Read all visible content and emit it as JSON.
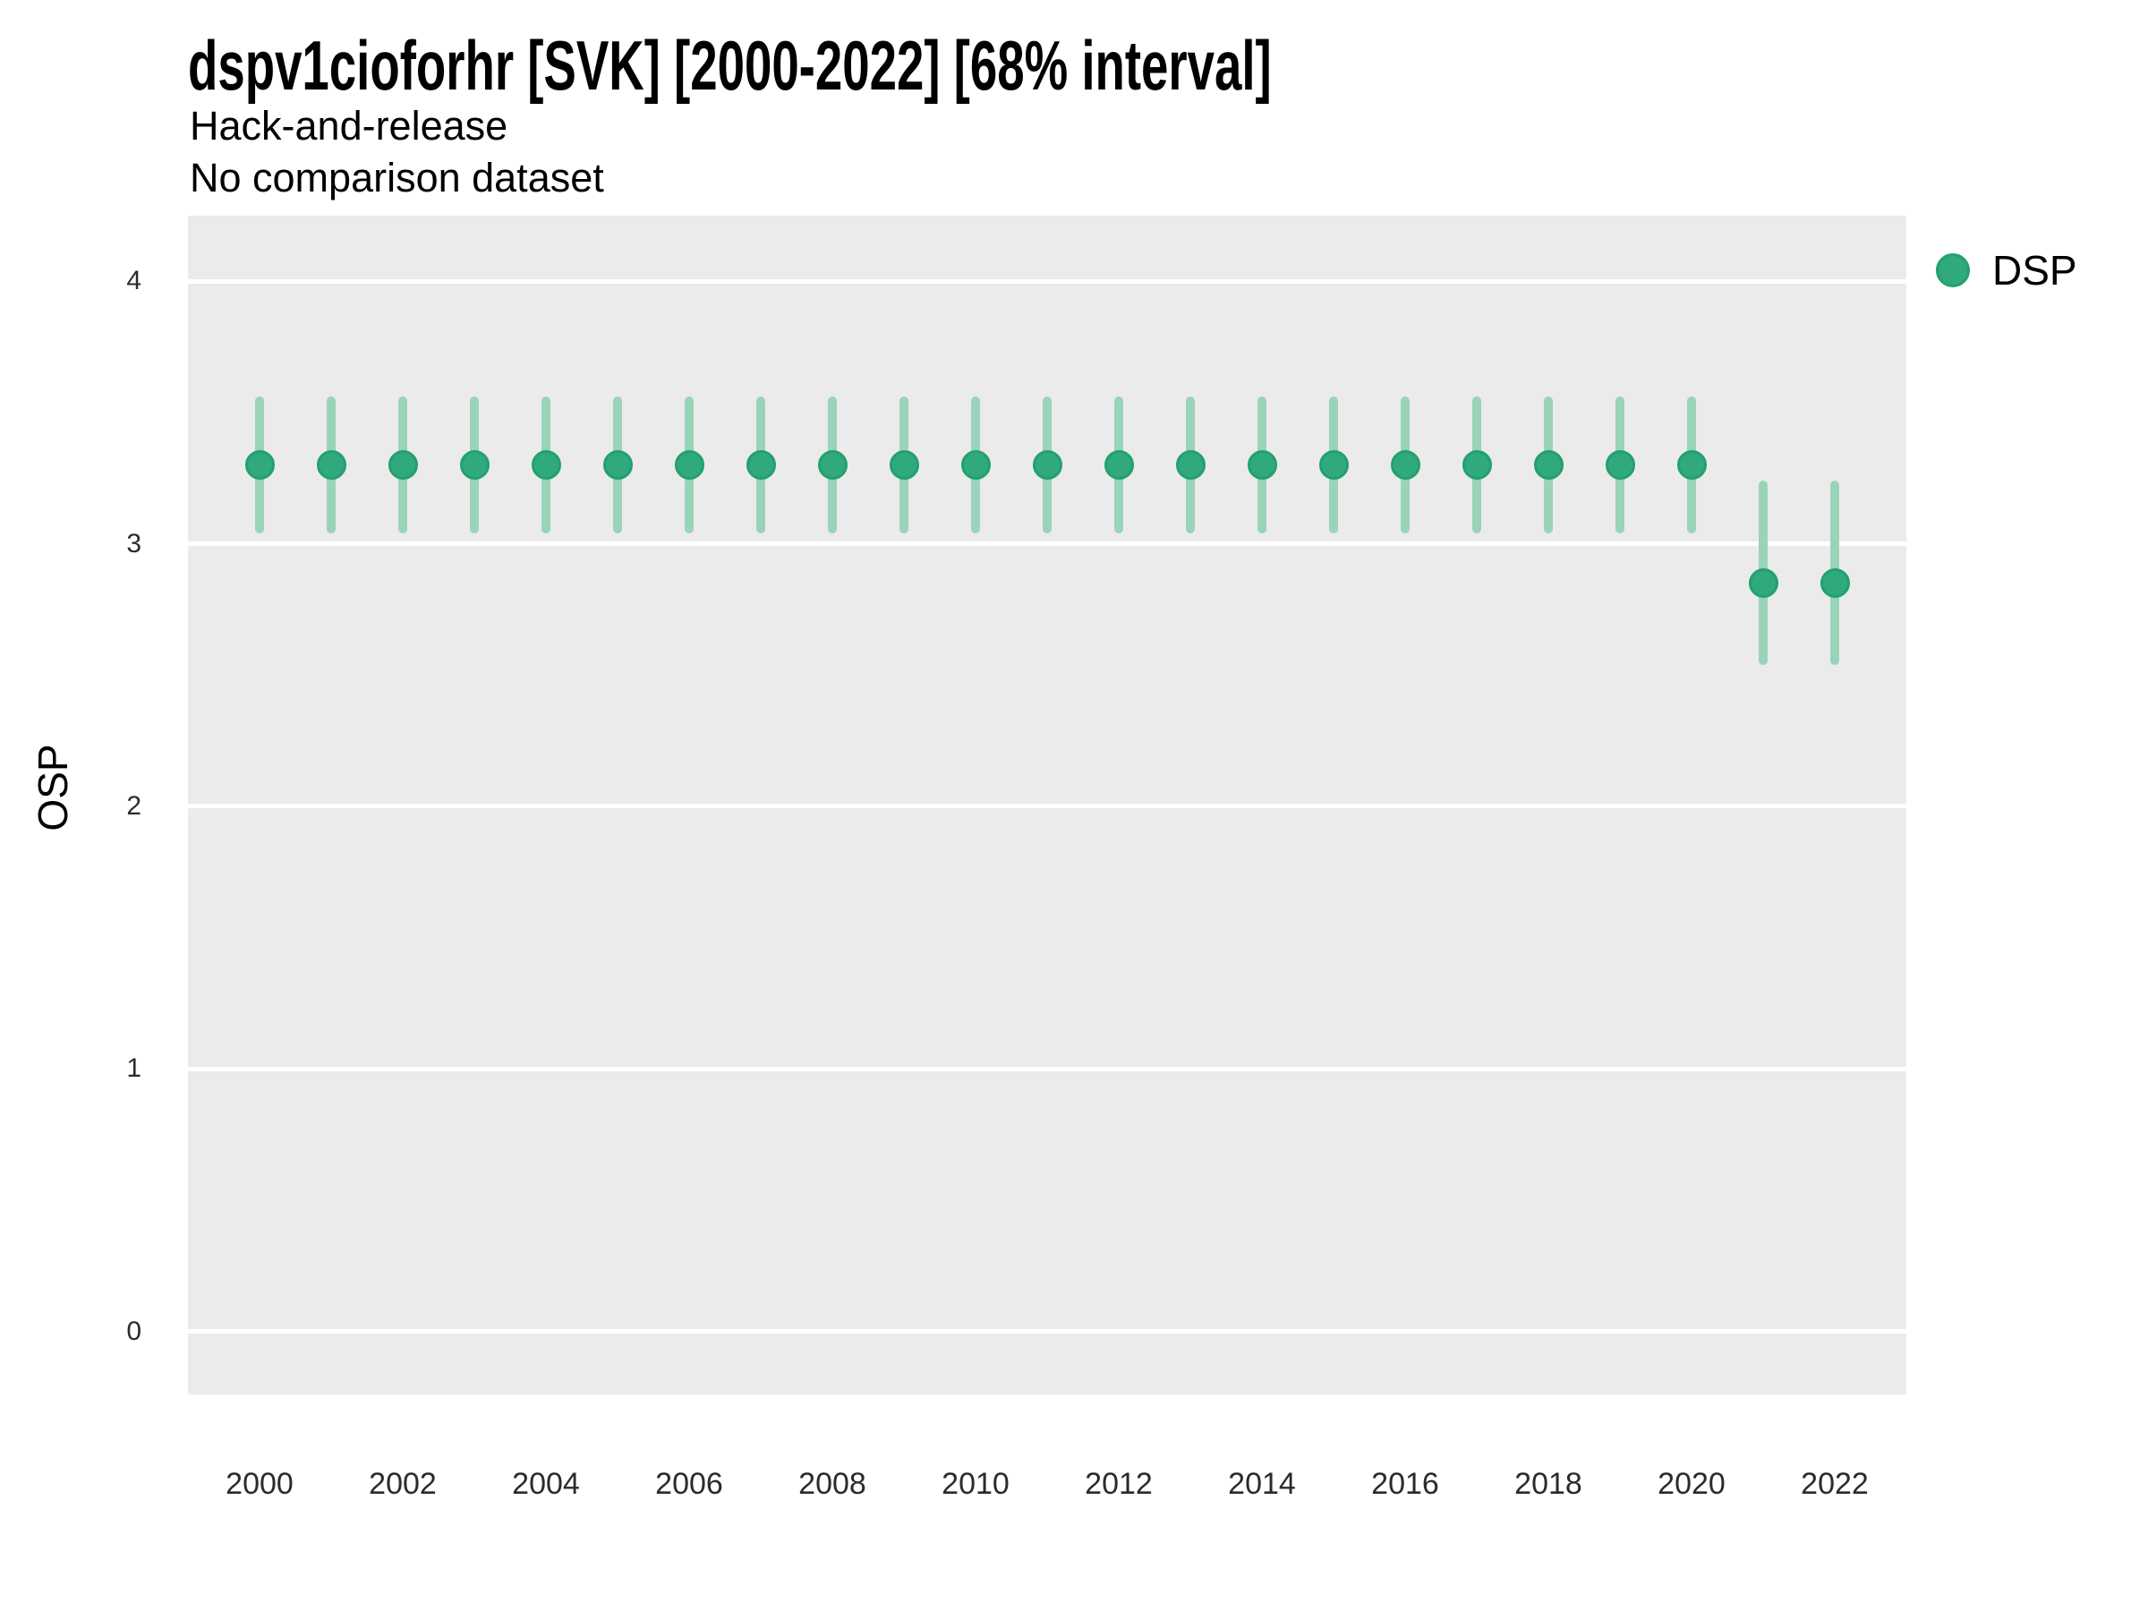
{
  "header": {
    "title": "dspv1cioforhr [SVK] [2000-2022] [68% interval]",
    "subtitle": "Hack-and-release",
    "subtitle2": "No comparison dataset"
  },
  "legend": {
    "label": "DSP",
    "position": "right-top",
    "swatch": "circle"
  },
  "colors": {
    "point": "#30aa7d",
    "point_edge": "#22a070",
    "errorbar": "#99d4ba",
    "panel_bg": "#ebebeb",
    "gridline": "#ffffff",
    "title_text": "#000000",
    "tick_text": "#2b2b2b"
  },
  "chart_data": {
    "type": "scatter",
    "title": "dspv1cioforhr [SVK] [2000-2022] [68% interval]",
    "subtitle": "Hack-and-release",
    "subtitle2": "No comparison dataset",
    "xlabel": "",
    "ylabel": "OSP",
    "interval_label": "68% interval",
    "legend_position": "right-top",
    "grid": "horizontal-major-only-white-on-gray",
    "x": [
      2000,
      2001,
      2002,
      2003,
      2004,
      2005,
      2006,
      2007,
      2008,
      2009,
      2010,
      2011,
      2012,
      2013,
      2014,
      2015,
      2016,
      2017,
      2018,
      2019,
      2020,
      2021,
      2022
    ],
    "series": [
      {
        "name": "DSP",
        "values": [
          3.3,
          3.3,
          3.3,
          3.3,
          3.3,
          3.3,
          3.3,
          3.3,
          3.3,
          3.3,
          3.3,
          3.3,
          3.3,
          3.3,
          3.3,
          3.3,
          3.3,
          3.3,
          3.3,
          3.3,
          3.3,
          2.85,
          2.85
        ],
        "lower": [
          3.04,
          3.04,
          3.04,
          3.04,
          3.04,
          3.04,
          3.04,
          3.04,
          3.04,
          3.04,
          3.04,
          3.04,
          3.04,
          3.04,
          3.04,
          3.04,
          3.04,
          3.04,
          3.04,
          3.04,
          3.04,
          2.54,
          2.54
        ],
        "upper": [
          3.56,
          3.56,
          3.56,
          3.56,
          3.56,
          3.56,
          3.56,
          3.56,
          3.56,
          3.56,
          3.56,
          3.56,
          3.56,
          3.56,
          3.56,
          3.56,
          3.56,
          3.56,
          3.56,
          3.56,
          3.56,
          3.24,
          3.24
        ]
      }
    ],
    "xticks": [
      2000,
      2002,
      2004,
      2006,
      2008,
      2010,
      2012,
      2014,
      2016,
      2018,
      2020,
      2022
    ],
    "yticks": [
      0,
      1,
      2,
      3,
      4
    ],
    "xlim": [
      1999,
      2023
    ],
    "ylim": [
      -0.24,
      4.25
    ]
  }
}
